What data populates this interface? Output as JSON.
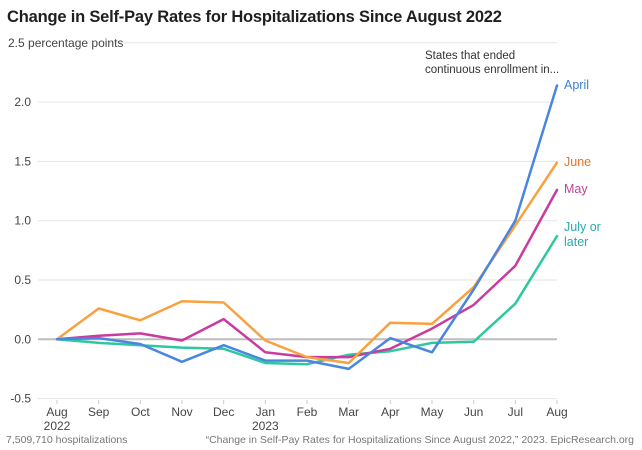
{
  "chart_data": {
    "type": "line",
    "title": "Change in Self-Pay Rates for Hospitalizations Since August 2022",
    "ylabel": "percentage points",
    "xlabel": "",
    "ylim": [
      -0.5,
      2.5
    ],
    "yticks": [
      -0.5,
      0.0,
      0.5,
      1.0,
      1.5,
      2.0,
      2.5
    ],
    "ytick_labels": [
      "-0.5",
      "0.0",
      "0.5",
      "1.0",
      "1.5",
      "2.0",
      "2.5 percentage points"
    ],
    "x": [
      "Aug",
      "Sep",
      "Oct",
      "Nov",
      "Dec",
      "Jan",
      "Feb",
      "Mar",
      "Apr",
      "May",
      "Jun",
      "Jul",
      "Aug"
    ],
    "x_sublabels": {
      "0": "2022",
      "5": "2023"
    },
    "grid": true,
    "legend": "direct-labels-right",
    "annotation": [
      "States that ended",
      "continuous enrollment in..."
    ],
    "series": [
      {
        "name": "April",
        "color": "#4a86e0",
        "label_color": "#3d7fd9",
        "values": [
          0.0,
          0.01,
          -0.04,
          -0.19,
          -0.05,
          -0.18,
          -0.18,
          -0.25,
          0.01,
          -0.11,
          0.42,
          1.0,
          2.14
        ]
      },
      {
        "name": "June",
        "color": "#f9a13f",
        "label_color": "#e27421",
        "values": [
          0.0,
          0.26,
          0.16,
          0.32,
          0.31,
          -0.01,
          -0.15,
          -0.2,
          0.14,
          0.13,
          0.44,
          0.96,
          1.49
        ]
      },
      {
        "name": "May",
        "color": "#c83b9f",
        "label_color": "#c2419a",
        "values": [
          0.0,
          0.03,
          0.05,
          -0.01,
          0.17,
          -0.11,
          -0.15,
          -0.15,
          -0.08,
          0.09,
          0.29,
          0.62,
          1.26
        ]
      },
      {
        "name": "July or later",
        "label_lines": [
          "July or",
          "later"
        ],
        "color": "#2ec8a0",
        "label_color": "#26a8b0",
        "values": [
          0.0,
          -0.03,
          -0.05,
          -0.07,
          -0.08,
          -0.2,
          -0.21,
          -0.13,
          -0.1,
          -0.03,
          -0.02,
          0.3,
          0.87
        ]
      }
    ],
    "footer_left": "7,509,710 hospitalizations",
    "footer_right": "“Change in Self-Pay Rates for Hospitalizations Since August 2022,” 2023. EpicResearch.org"
  }
}
